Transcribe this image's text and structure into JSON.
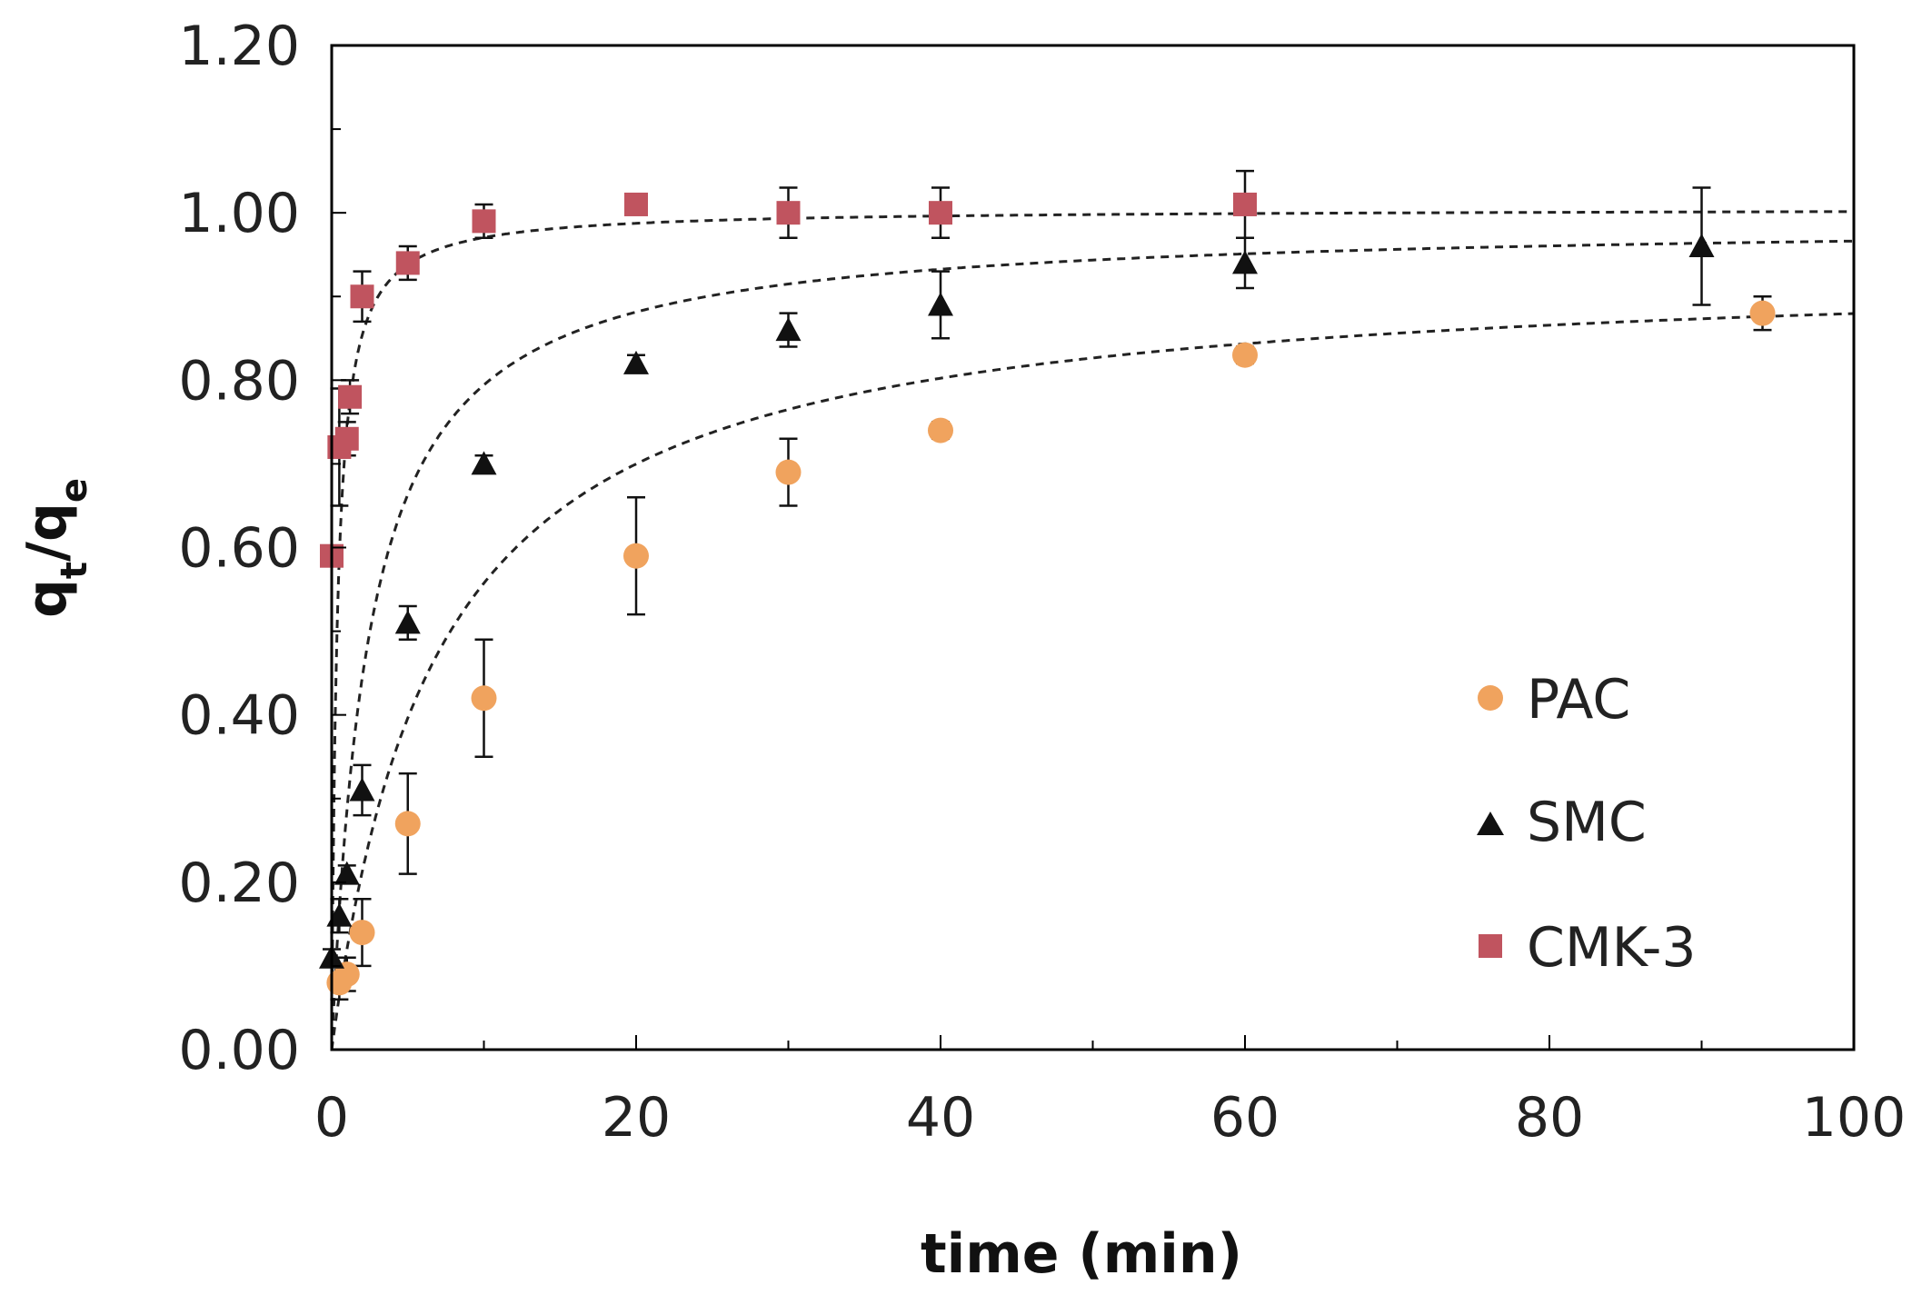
{
  "chart_data": {
    "type": "scatter",
    "title": "",
    "xlabel": "time (min)",
    "ylabel": {
      "base": "q",
      "sub1": "t",
      "sep": "/",
      "base2": "q",
      "sub2": "e"
    },
    "xlim": [
      0,
      100
    ],
    "ylim": [
      0,
      1.2
    ],
    "x_ticks": [
      0,
      20,
      40,
      60,
      80,
      100
    ],
    "y_ticks": [
      0,
      0.2,
      0.4,
      0.6,
      0.8,
      1.0,
      1.2
    ],
    "x_tick_labels": [
      "0",
      "20",
      "40",
      "60",
      "80",
      "100"
    ],
    "y_tick_labels": [
      "0.00",
      "0.20",
      "0.40",
      "0.60",
      "0.80",
      "1.00",
      "1.20"
    ],
    "grid": false,
    "legend_position": "center-right",
    "series": [
      {
        "name": "PAC",
        "marker": "circle",
        "color": "#F0A35E",
        "x": [
          0.5,
          1,
          2,
          5,
          10,
          20,
          30,
          40,
          60,
          94
        ],
        "y": [
          0.08,
          0.09,
          0.14,
          0.27,
          0.42,
          0.59,
          0.69,
          0.74,
          0.83,
          0.88
        ],
        "err": [
          0.02,
          0.02,
          0.04,
          0.06,
          0.07,
          0.07,
          0.04,
          0.01,
          0.01,
          0.02
        ],
        "fit": {
          "model": "pseudo-second-order",
          "qe": 0.94,
          "k": 0.155
        }
      },
      {
        "name": "SMC",
        "marker": "triangle",
        "color": "#111111",
        "x": [
          0,
          0.5,
          1,
          2,
          5,
          10,
          20,
          30,
          40,
          60,
          90
        ],
        "y": [
          0.11,
          0.16,
          0.21,
          0.31,
          0.51,
          0.7,
          0.82,
          0.86,
          0.89,
          0.94,
          0.96
        ],
        "err": [
          0.01,
          0.02,
          0.01,
          0.03,
          0.02,
          0.01,
          0.01,
          0.02,
          0.04,
          0.03,
          0.07
        ],
        "fit": {
          "model": "pseudo-second-order",
          "qe": 0.99,
          "k": 0.41
        }
      },
      {
        "name": "CMK-3",
        "marker": "square",
        "color": "#C0545F",
        "x": [
          0,
          0.5,
          1,
          1.2,
          2,
          5,
          10,
          20,
          30,
          40,
          60
        ],
        "y": [
          0.59,
          0.72,
          0.73,
          0.78,
          0.9,
          0.94,
          0.99,
          1.01,
          1.0,
          1.0,
          1.01
        ],
        "err": [
          0.01,
          0.07,
          0.02,
          0.02,
          0.03,
          0.02,
          0.02,
          0.01,
          0.03,
          0.03,
          0.04
        ],
        "fit": {
          "model": "pseudo-second-order",
          "qe": 1.005,
          "k": 2.8
        }
      }
    ]
  }
}
